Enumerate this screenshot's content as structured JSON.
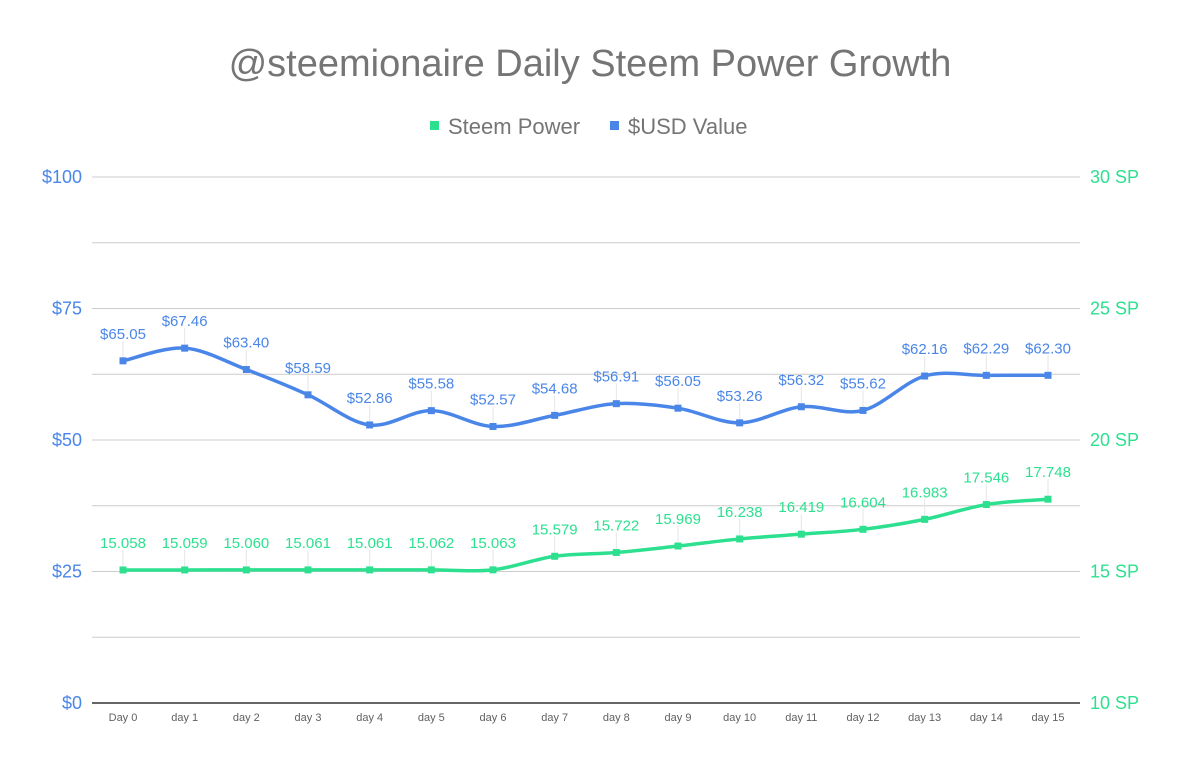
{
  "chart_data": {
    "type": "line",
    "title": "@steemionaire Daily Steem Power Growth",
    "categories": [
      "Day 0",
      "day 1",
      "day 2",
      "day 3",
      "day 4",
      "day 5",
      "day 6",
      "day 7",
      "day 8",
      "day 9",
      "day 10",
      "day 11",
      "day 12",
      "day 13",
      "day 14",
      "day 15"
    ],
    "series": [
      {
        "name": "Steem Power",
        "axis": "right",
        "color": "#2de08f",
        "values": [
          15.058,
          15.059,
          15.06,
          15.061,
          15.061,
          15.062,
          15.063,
          15.579,
          15.722,
          15.969,
          16.238,
          16.419,
          16.604,
          16.983,
          17.546,
          17.748
        ],
        "labels": [
          "15.058",
          "15.059",
          "15.060",
          "15.061",
          "15.061",
          "15.062",
          "15.063",
          "15.579",
          "15.722",
          "15.969",
          "16.238",
          "16.419",
          "16.604",
          "16.983",
          "17.546",
          "17.748"
        ]
      },
      {
        "name": "$USD Value",
        "axis": "left",
        "color": "#4a86e8",
        "values": [
          65.05,
          67.46,
          63.4,
          58.59,
          52.86,
          55.58,
          52.57,
          54.68,
          56.91,
          56.05,
          53.26,
          56.32,
          55.62,
          62.16,
          62.29,
          62.3
        ],
        "labels": [
          "$65.05",
          "$67.46",
          "$63.40",
          "$58.59",
          "$52.86",
          "$55.58",
          "$52.57",
          "$54.68",
          "$56.91",
          "$56.05",
          "$53.26",
          "$56.32",
          "$55.62",
          "$62.16",
          "$62.29",
          "$62.30"
        ]
      }
    ],
    "left_axis": {
      "range": [
        0,
        100
      ],
      "ticks": [
        0,
        25,
        50,
        75,
        100
      ],
      "tick_labels": [
        "$0",
        "$25",
        "$50",
        "$75",
        "$100"
      ],
      "color": "#4a86e8"
    },
    "right_axis": {
      "range": [
        10,
        30
      ],
      "ticks": [
        10,
        15,
        20,
        25,
        30
      ],
      "tick_labels": [
        "10 SP",
        "15 SP",
        "20 SP",
        "25 SP",
        "30 SP"
      ],
      "color": "#2de08f"
    },
    "grid": true,
    "legend_position": "top",
    "smooth": true
  }
}
